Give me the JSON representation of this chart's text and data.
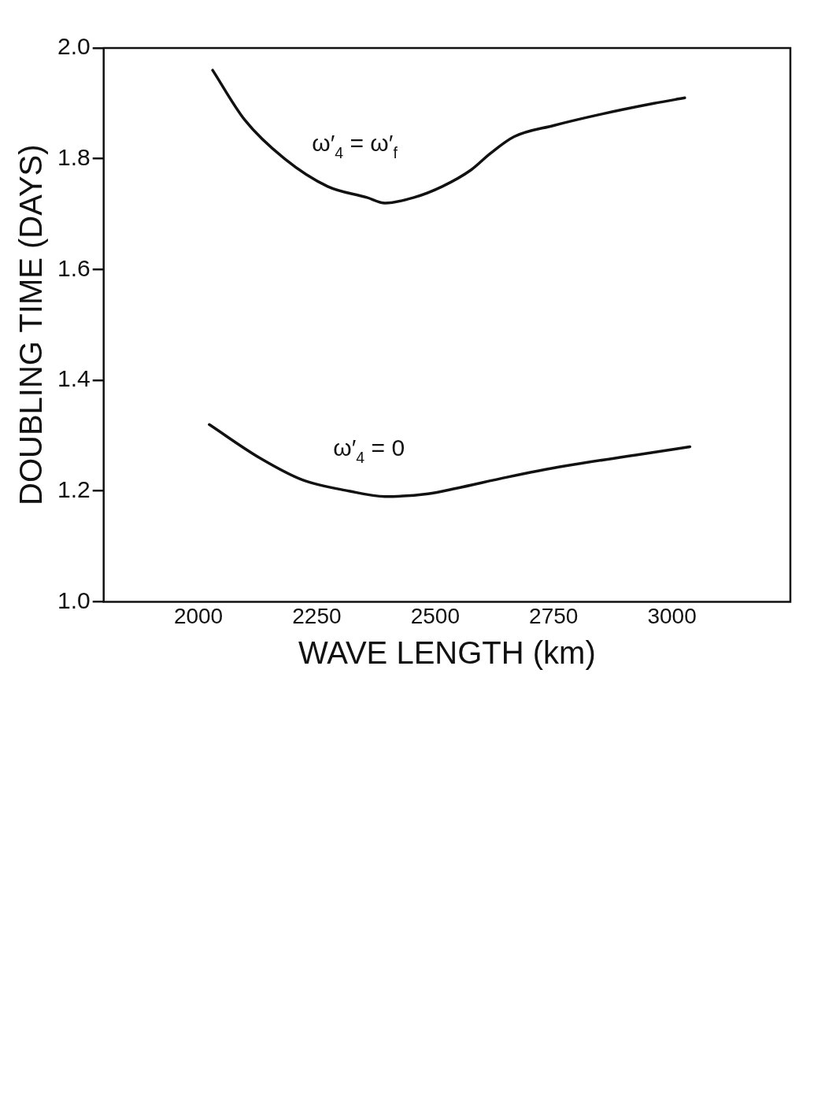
{
  "chart_data": {
    "type": "line",
    "xlabel": "WAVE LENGTH (km)",
    "ylabel": "DOUBLING TIME (DAYS)",
    "xlim": [
      1800,
      3250
    ],
    "xticks": [
      2000,
      2250,
      2500,
      2750,
      3000
    ],
    "ylim": [
      1.0,
      2.0
    ],
    "yticks": [
      {
        "value": 1.0,
        "label": "1.0"
      },
      {
        "value": 1.2,
        "label": "1.2"
      },
      {
        "value": 1.4,
        "label": "1.4"
      },
      {
        "value": 1.6,
        "label": "1.6"
      },
      {
        "value": 1.8,
        "label": "1.8"
      },
      {
        "value": 2.0,
        "label": "2.0"
      }
    ],
    "grid": false,
    "legend": false,
    "marker": "none",
    "line_style": "solid",
    "series": [
      {
        "name": "ω′$_{4}$ = ω′$_{f}$",
        "color": "#111111",
        "x": [
          2030,
          2098,
          2182,
          2273,
          2356,
          2394,
          2455,
          2515,
          2576,
          2617,
          2667,
          2750,
          2848,
          2962,
          3027
        ],
        "values": [
          1.96,
          1.87,
          1.8,
          1.75,
          1.73,
          1.72,
          1.73,
          1.75,
          1.78,
          1.81,
          1.84,
          1.86,
          1.88,
          1.9,
          1.91
        ]
      },
      {
        "name": "ω′$_{4}$ = 0",
        "color": "#111111",
        "x": [
          2023,
          2129,
          2220,
          2318,
          2394,
          2485,
          2545,
          2652,
          2773,
          2924,
          3038
        ],
        "values": [
          1.32,
          1.26,
          1.22,
          1.2,
          1.19,
          1.195,
          1.205,
          1.225,
          1.245,
          1.265,
          1.28
        ]
      }
    ]
  }
}
